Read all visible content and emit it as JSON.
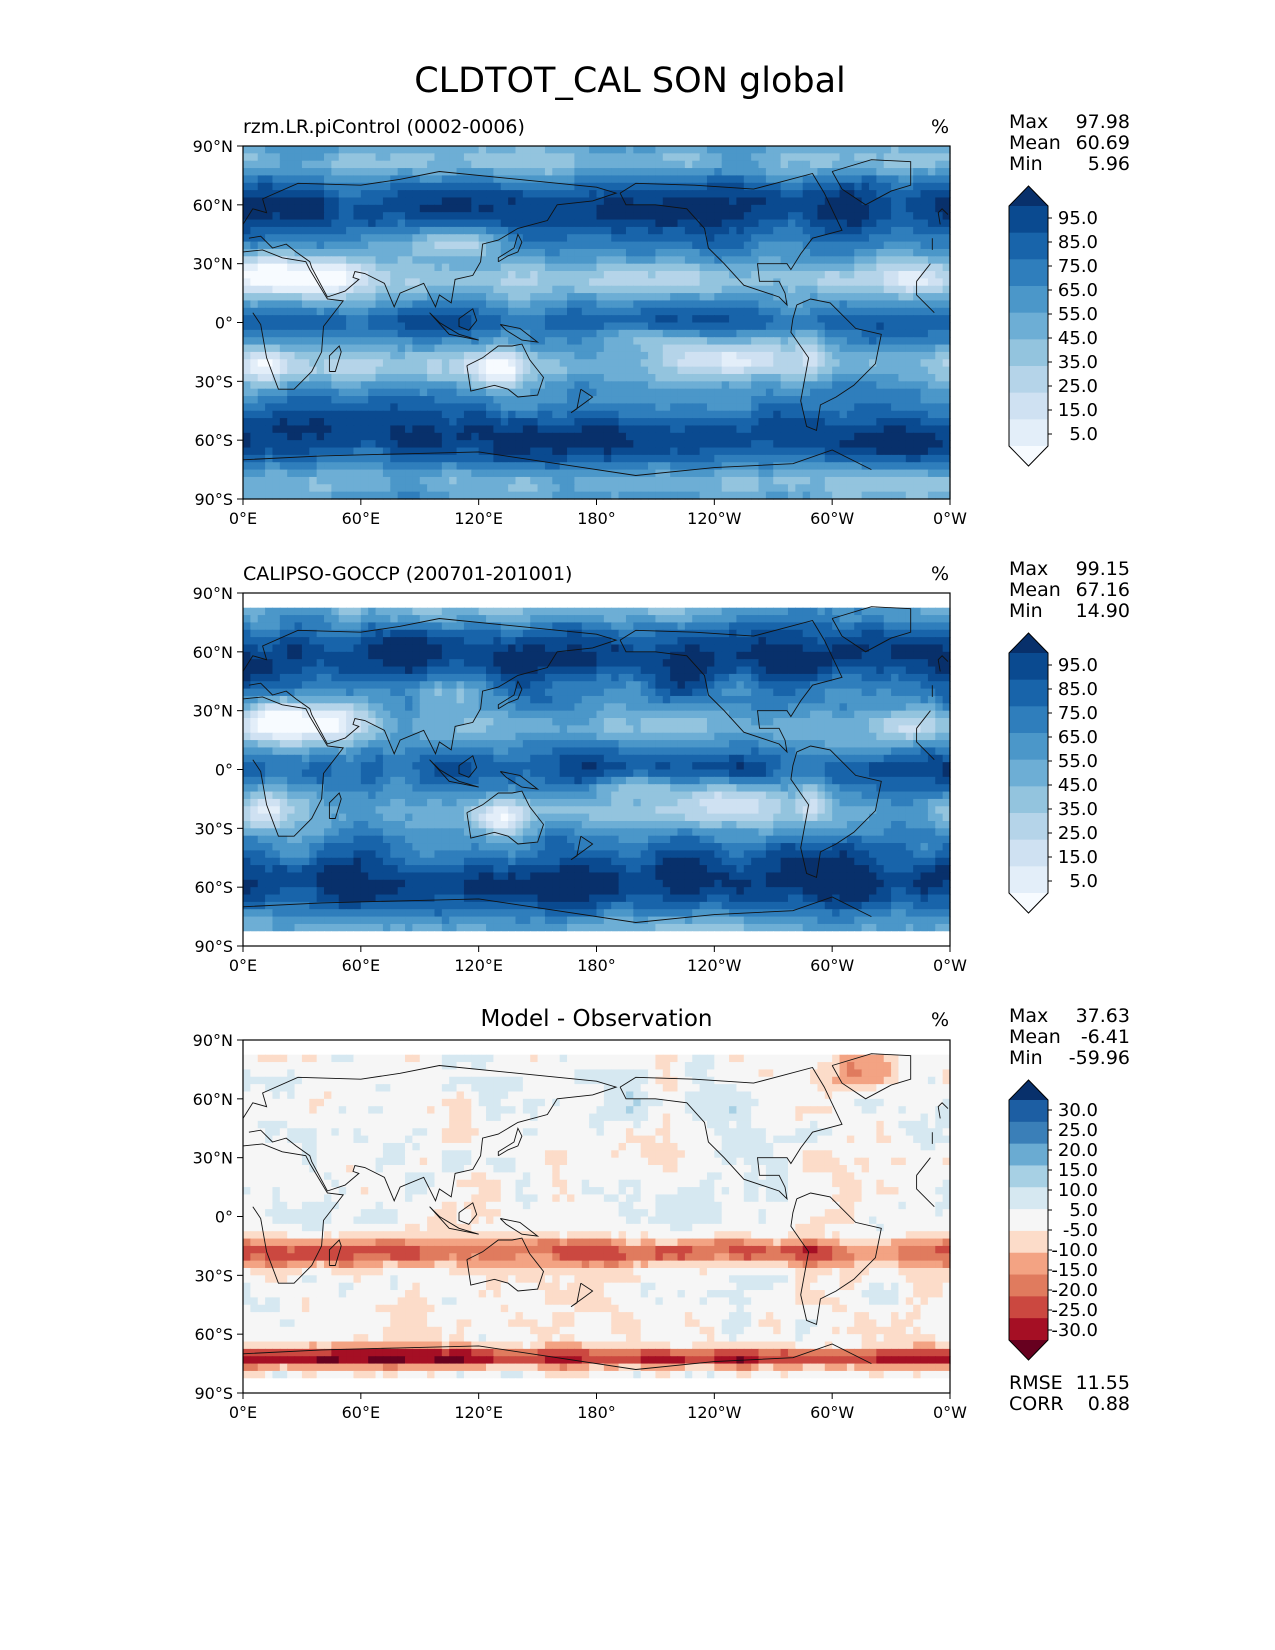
{
  "chart_data": {
    "type": "heatmap",
    "title": "CLDTOT_CAL SON global",
    "x_tick_labels": [
      "0°E",
      "60°E",
      "120°E",
      "180°",
      "120°W",
      "60°W",
      "0°W"
    ],
    "y_tick_labels": [
      "90°N",
      "60°N",
      "30°N",
      "0°",
      "30°S",
      "60°S",
      "90°S"
    ],
    "x_range": [
      0,
      360
    ],
    "y_range": [
      -90,
      90
    ],
    "panels": [
      {
        "name": "model",
        "title": "rzm.LR.piControl (0002-0006)",
        "title_align": "left",
        "units": "%",
        "stats": [
          {
            "label": "Max",
            "value": "97.98"
          },
          {
            "label": "Mean",
            "value": "60.69"
          },
          {
            "label": "Min",
            "value": "5.96"
          }
        ],
        "colorbar": {
          "colors": [
            "#f7fbff",
            "#e3eef9",
            "#cfe1f2",
            "#b5d4e9",
            "#93c4de",
            "#6daed5",
            "#4b97c9",
            "#2f7ebc",
            "#1864aa",
            "#0a4a90",
            "#08306b"
          ],
          "labels": [
            "95.0",
            "85.0",
            "75.0",
            "65.0",
            "55.0",
            "45.0",
            "35.0",
            "25.0",
            "15.0",
            "5.0"
          ]
        },
        "extra_stats": []
      },
      {
        "name": "obs",
        "title": "CALIPSO-GOCCP (200701-201001)",
        "title_align": "left",
        "units": "%",
        "stats": [
          {
            "label": "Max",
            "value": "99.15"
          },
          {
            "label": "Mean",
            "value": "67.16"
          },
          {
            "label": "Min",
            "value": "14.90"
          }
        ],
        "colorbar": {
          "colors": [
            "#f7fbff",
            "#e3eef9",
            "#cfe1f2",
            "#b5d4e9",
            "#93c4de",
            "#6daed5",
            "#4b97c9",
            "#2f7ebc",
            "#1864aa",
            "#0a4a90",
            "#08306b"
          ],
          "labels": [
            "95.0",
            "85.0",
            "75.0",
            "65.0",
            "55.0",
            "45.0",
            "35.0",
            "25.0",
            "15.0",
            "5.0"
          ]
        },
        "extra_stats": []
      },
      {
        "name": "diff",
        "title": "Model - Observation",
        "title_align": "center",
        "units": "%",
        "stats": [
          {
            "label": "Max",
            "value": "37.63"
          },
          {
            "label": "Mean",
            "value": "-6.41"
          },
          {
            "label": "Min",
            "value": "-59.96"
          }
        ],
        "colorbar": {
          "colors": [
            "#67001f",
            "#a50f24",
            "#cb4840",
            "#e07b5e",
            "#f3a383",
            "#fcdcc9",
            "#f6f6f6",
            "#d6e8f1",
            "#a7d0e4",
            "#6aabd2",
            "#3a7fb8",
            "#1c5ea3",
            "#08306b"
          ],
          "labels": [
            "30.0",
            "25.0",
            "20.0",
            "15.0",
            "10.0",
            "5.0",
            "-5.0",
            "-10.0",
            "-15.0",
            "-20.0",
            "-25.0",
            "-30.0"
          ]
        },
        "extra_stats": [
          {
            "label": "RMSE",
            "value": "11.55"
          },
          {
            "label": "CORR",
            "value": "0.88"
          }
        ]
      }
    ]
  }
}
